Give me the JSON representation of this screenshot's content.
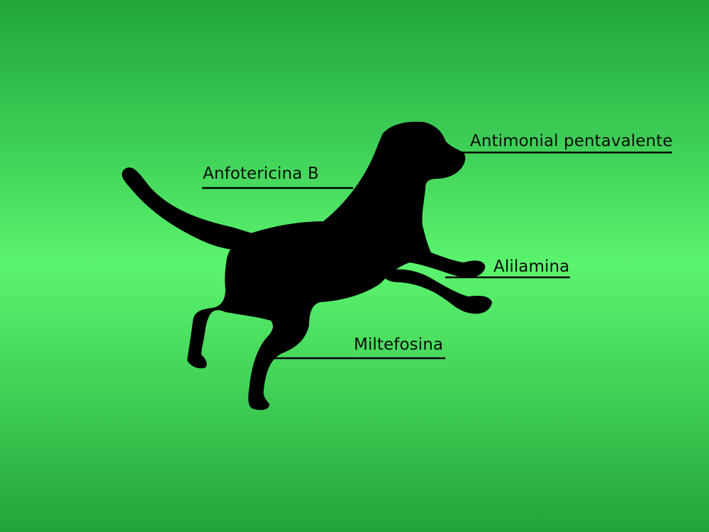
{
  "labels": {
    "antimonial": "Antimonial pentavalente",
    "anfotericina": "Anfotericina B",
    "alilamina": "Alilamina",
    "miltefosina": "Miltefosina"
  },
  "colors": {
    "silhouette": "#000000",
    "background_center": "#5bf46e",
    "background_edge": "#21a63a"
  }
}
